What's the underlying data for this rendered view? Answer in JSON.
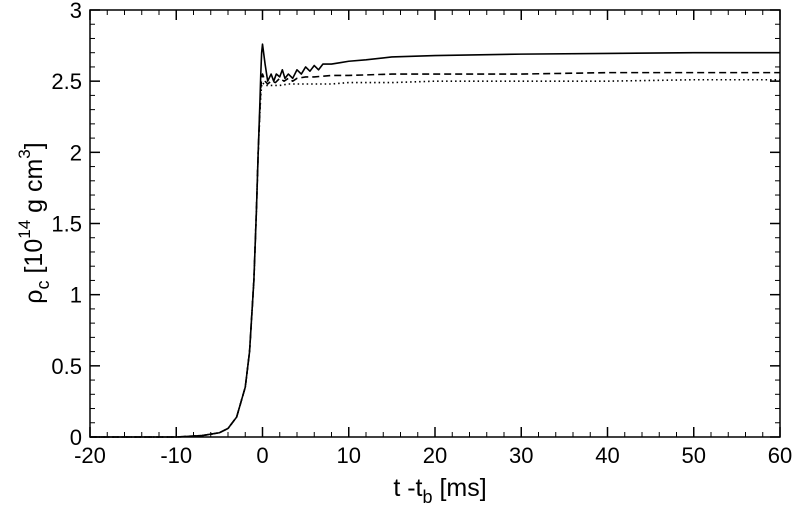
{
  "chart_data": {
    "type": "line",
    "title": "",
    "xlabel": {
      "main": "t -t",
      "sub": "b",
      "rest": " [ms]"
    },
    "ylabel": {
      "main": "ρ",
      "sub": "c",
      "bracket_open": " [10",
      "sup": "14",
      "unit": " g cm",
      "unit_sup": "3",
      "bracket_close": "]"
    },
    "xlim": [
      -20,
      60
    ],
    "ylim": [
      0,
      3
    ],
    "xticks": [
      -20,
      -10,
      0,
      10,
      20,
      30,
      40,
      50,
      60
    ],
    "yticks": [
      0,
      0.5,
      1,
      1.5,
      2,
      2.5,
      3
    ],
    "xtick_labels": [
      "-20",
      "-10",
      "0",
      "10",
      "20",
      "30",
      "40",
      "50",
      "60"
    ],
    "ytick_labels": [
      "0",
      "0.5",
      "1",
      "1.5",
      "2",
      "2.5",
      "3"
    ],
    "grid": false,
    "legend": "none",
    "series": [
      {
        "style": "solid",
        "x": [
          -20,
          -10,
          -7,
          -5,
          -4,
          -3,
          -2,
          -1.5,
          -1,
          -0.7,
          -0.5,
          -0.3,
          -0.2,
          -0.1,
          0,
          0.3,
          0.6,
          1,
          1.3,
          1.6,
          2,
          2.3,
          2.6,
          3,
          3.5,
          4,
          4.5,
          5,
          5.5,
          6,
          6.5,
          7,
          8,
          9,
          10,
          12,
          15,
          20,
          30,
          40,
          50,
          60
        ],
        "y": [
          0,
          0.0,
          0.01,
          0.03,
          0.06,
          0.14,
          0.35,
          0.6,
          1.1,
          1.6,
          2.0,
          2.35,
          2.55,
          2.7,
          2.76,
          2.62,
          2.5,
          2.55,
          2.5,
          2.55,
          2.53,
          2.58,
          2.52,
          2.55,
          2.52,
          2.58,
          2.55,
          2.6,
          2.57,
          2.61,
          2.58,
          2.62,
          2.62,
          2.63,
          2.64,
          2.65,
          2.67,
          2.68,
          2.69,
          2.695,
          2.7,
          2.7
        ]
      },
      {
        "style": "dashed",
        "x": [
          -20,
          -10,
          -7,
          -5,
          -4,
          -3,
          -2,
          -1.5,
          -1,
          -0.7,
          -0.5,
          -0.3,
          -0.2,
          -0.1,
          0,
          0.3,
          0.6,
          1,
          1.5,
          2,
          2.5,
          3,
          3.5,
          4,
          5,
          6,
          8,
          10,
          15,
          20,
          30,
          40,
          50,
          60
        ],
        "y": [
          0,
          0.0,
          0.01,
          0.03,
          0.06,
          0.14,
          0.35,
          0.6,
          1.1,
          1.6,
          2.0,
          2.3,
          2.45,
          2.52,
          2.55,
          2.5,
          2.48,
          2.5,
          2.49,
          2.52,
          2.5,
          2.52,
          2.5,
          2.52,
          2.53,
          2.53,
          2.54,
          2.54,
          2.55,
          2.55,
          2.55,
          2.56,
          2.56,
          2.56
        ]
      },
      {
        "style": "dotted",
        "x": [
          -20,
          -10,
          -7,
          -5,
          -4,
          -3,
          -2,
          -1.5,
          -1,
          -0.7,
          -0.5,
          -0.3,
          -0.2,
          -0.1,
          0,
          0.3,
          0.6,
          1,
          2,
          3,
          4,
          5,
          6,
          8,
          10,
          15,
          20,
          30,
          40,
          50,
          60
        ],
        "y": [
          0,
          0.0,
          0.01,
          0.03,
          0.06,
          0.14,
          0.35,
          0.6,
          1.1,
          1.6,
          2.0,
          2.28,
          2.4,
          2.47,
          2.49,
          2.47,
          2.47,
          2.47,
          2.47,
          2.48,
          2.48,
          2.48,
          2.48,
          2.48,
          2.49,
          2.49,
          2.5,
          2.5,
          2.5,
          2.51,
          2.51
        ]
      }
    ]
  }
}
